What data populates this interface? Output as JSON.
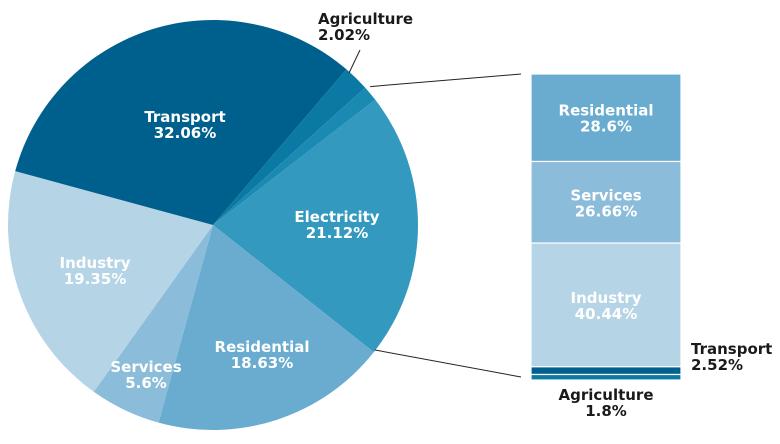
{
  "chart_data": [
    {
      "type": "pie",
      "unit": "%",
      "slices": [
        {
          "label": "Electricity",
          "value": 21.12,
          "color": "#3399bf",
          "text_color": "#ffffff"
        },
        {
          "label": "Residential",
          "value": 18.63,
          "color": "#69acd0",
          "text_color": "#ffffff"
        },
        {
          "label": "Services",
          "value": 5.6,
          "color": "#8bbcd9",
          "text_color": "#ffffff"
        },
        {
          "label": "Industry",
          "value": 19.35,
          "color": "#b5d4e6",
          "text_color": "#ffffff"
        },
        {
          "label": "Transport",
          "value": 32.06,
          "color": "#00608d",
          "text_color": "#ffffff"
        },
        {
          "label": "Agriculture",
          "value": 2.02,
          "color": "#0a79a4",
          "text_color": "#1a1a1a"
        },
        {
          "label": "",
          "value": 1.22,
          "color": "#1a8ab2",
          "text_color": "#1a1a1a"
        }
      ],
      "exploded_slice": 6
    },
    {
      "type": "bar",
      "stacked": true,
      "unit": "%",
      "segments": [
        {
          "label": "Residential",
          "value": 28.6,
          "color": "#69acd0",
          "text_color": "#ffffff"
        },
        {
          "label": "Services",
          "value": 26.66,
          "color": "#8bbcd9",
          "text_color": "#ffffff"
        },
        {
          "label": "Industry",
          "value": 40.44,
          "color": "#b5d4e6",
          "text_color": "#ffffff"
        },
        {
          "label": "Transport",
          "value": 2.52,
          "color": "#00608d",
          "text_color": "#1a1a1a"
        },
        {
          "label": "Agriculture",
          "value": 1.8,
          "color": "#0a79a4",
          "text_color": "#1a1a1a"
        }
      ]
    }
  ]
}
